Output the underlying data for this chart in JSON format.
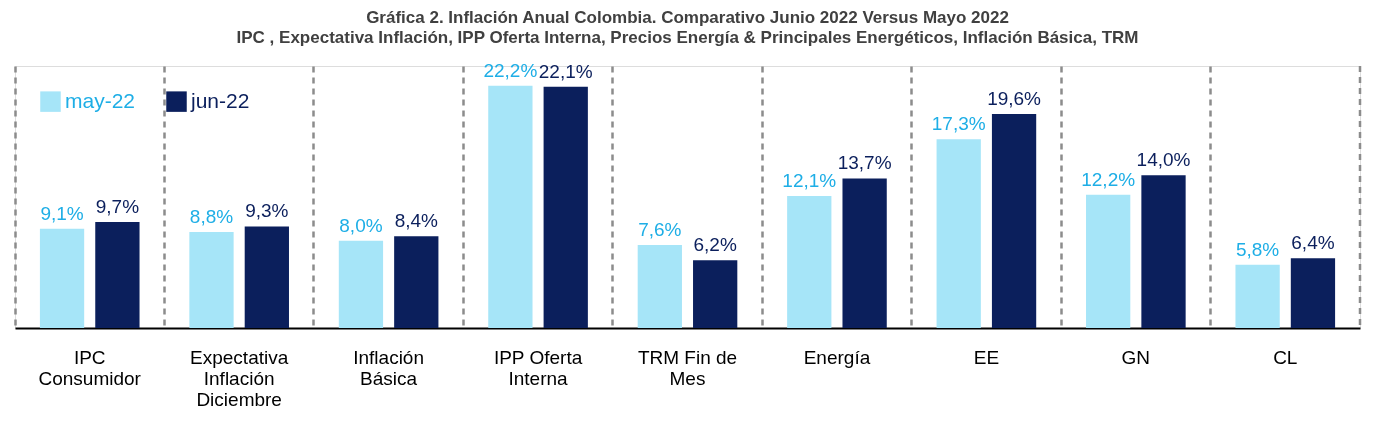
{
  "chart_data": {
    "type": "bar",
    "title": "Gráfica 2. Inflación Anual Colombia. Comparativo  Junio 2022 Versus Mayo 2022",
    "subtitle": "IPC , Expectativa Inflación,  IPP Oferta Interna, Precios Energía & Principales Energéticos, Inflación Básica, TRM",
    "categories": [
      "IPC Consumidor",
      "Expectativa Inflación Diciembre",
      "Inflación Básica",
      "IPP Oferta Interna",
      "TRM Fin de Mes",
      "Energía",
      "EE",
      "GN",
      "CL"
    ],
    "series": [
      {
        "name": "may-22",
        "color": "#a6e5f8",
        "values": [
          9.1,
          8.8,
          8.0,
          22.2,
          7.6,
          12.1,
          17.3,
          12.2,
          5.8
        ],
        "value_labels": [
          "9,1%",
          "8,8%",
          "8,0%",
          "22,2%",
          "7,6%",
          "12,1%",
          "17,3%",
          "12,2%",
          "5,8%"
        ]
      },
      {
        "name": "jun-22",
        "color": "#0b1f5c",
        "values": [
          9.7,
          9.3,
          8.4,
          22.1,
          6.2,
          13.7,
          19.6,
          14.0,
          6.4
        ],
        "value_labels": [
          "9,7%",
          "9,3%",
          "8,4%",
          "22,1%",
          "6,2%",
          "13,7%",
          "19,6%",
          "14,0%",
          "6,4%"
        ]
      }
    ],
    "legend": "top left",
    "grid": "x"
  }
}
